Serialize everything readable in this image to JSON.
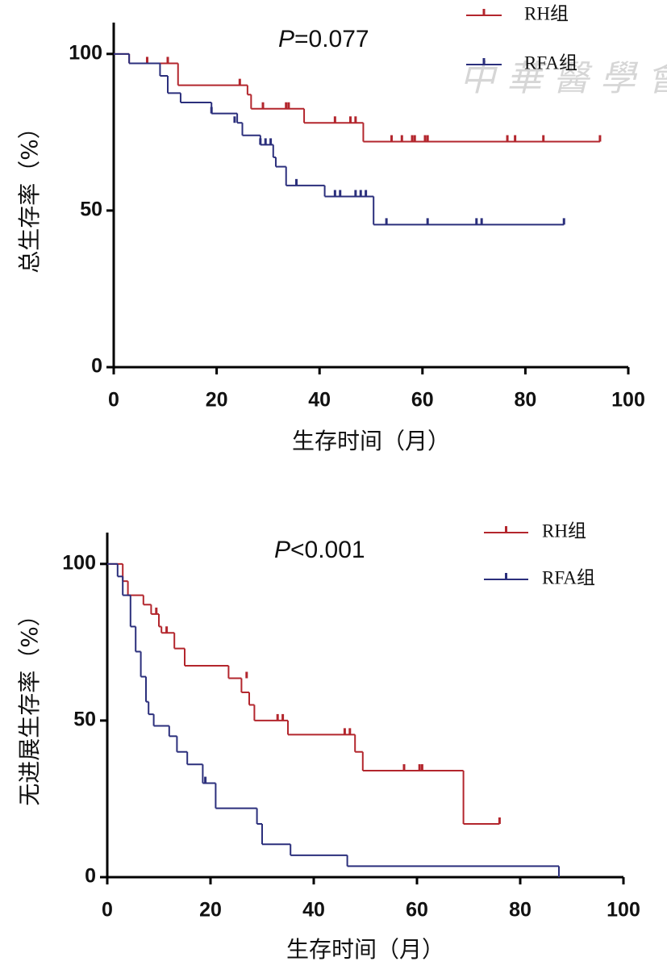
{
  "chart_data": [
    {
      "type": "line",
      "step": true,
      "ylabel": "总生存率（%）",
      "xlabel": "生存时间（月）",
      "annotation": "P=0.077",
      "watermark": "中華醫學會",
      "xlim": [
        0,
        100
      ],
      "xticks": [
        0,
        20,
        40,
        60,
        80,
        100
      ],
      "ylim": [
        0,
        110
      ],
      "yticks": [
        0,
        50,
        100
      ],
      "series": [
        {
          "name": "RH组",
          "color": "#b3262d",
          "x": [
            0,
            3,
            12.5,
            26,
            26.7,
            37,
            48.5,
            94.5
          ],
          "values": [
            100,
            97,
            90,
            87,
            82.5,
            78,
            72,
            72
          ],
          "censor_x": [
            6.5,
            10.5,
            24.5,
            29,
            33.5,
            34,
            43,
            46,
            47,
            54,
            56,
            58,
            58.5,
            60.5,
            61,
            76.5,
            78,
            83.5,
            94.5
          ],
          "censor_values": [
            97,
            97,
            90,
            82.5,
            82.5,
            82.5,
            78,
            78,
            78,
            72,
            72,
            72,
            72,
            72,
            72,
            72,
            72,
            72,
            72
          ]
        },
        {
          "name": "RFA组",
          "color": "#2b2f7c",
          "x": [
            0,
            3,
            9,
            10.5,
            13,
            19,
            24,
            25,
            28.5,
            31,
            31.5,
            33.5,
            41,
            50.5,
            87.5
          ],
          "values": [
            100,
            97,
            93,
            87.5,
            84.5,
            81,
            78,
            74,
            71,
            67,
            64,
            58,
            54.5,
            45.5,
            45.5
          ],
          "censor_x": [
            19,
            23.5,
            28.5,
            29.5,
            30.5,
            35.5,
            43,
            44,
            47,
            48,
            49,
            53,
            61,
            70.5,
            71.5,
            87.5
          ],
          "censor_values": [
            81,
            78,
            71,
            71,
            71,
            58,
            54.5,
            54.5,
            54.5,
            54.5,
            54.5,
            45.5,
            45.5,
            45.5,
            45.5,
            45.5
          ]
        }
      ]
    },
    {
      "type": "line",
      "step": true,
      "ylabel": "无进展生存率（%）",
      "xlabel": "生存时间（月）",
      "annotation": "P<0.001",
      "xlim": [
        0,
        100
      ],
      "xticks": [
        0,
        20,
        40,
        60,
        80,
        100
      ],
      "ylim": [
        0,
        110
      ],
      "yticks": [
        0,
        50,
        100
      ],
      "series": [
        {
          "name": "RH组",
          "color": "#b3262d",
          "x": [
            0,
            3,
            4,
            7,
            8.5,
            10,
            10.5,
            13,
            15,
            23.5,
            26,
            27.5,
            28.5,
            35,
            48,
            49.5,
            69,
            76
          ],
          "values": [
            100,
            94.5,
            90,
            87,
            84,
            80,
            78,
            73,
            67.5,
            63.5,
            59,
            55,
            50,
            45.5,
            40,
            34,
            17,
            17
          ],
          "censor_x": [
            9.5,
            11.5,
            27,
            33,
            34,
            46,
            47,
            57.5,
            60.5,
            61,
            76
          ],
          "censor_values": [
            84,
            78,
            63.5,
            50,
            50,
            45.5,
            45.5,
            34,
            34,
            34,
            17
          ]
        },
        {
          "name": "RFA组",
          "color": "#2b2f7c",
          "x": [
            0,
            2,
            3,
            4.5,
            5.5,
            6.5,
            7.5,
            8,
            9,
            12,
            13.5,
            15.5,
            18.5,
            21,
            29,
            30,
            35.5,
            46.5,
            87.5
          ],
          "values": [
            100,
            96,
            90,
            80,
            72,
            64,
            56,
            52,
            48.3,
            45,
            40,
            36,
            30,
            22,
            17,
            10.5,
            7,
            3.5,
            0
          ],
          "censor_x": [
            19
          ],
          "censor_values": [
            30
          ]
        }
      ]
    }
  ]
}
